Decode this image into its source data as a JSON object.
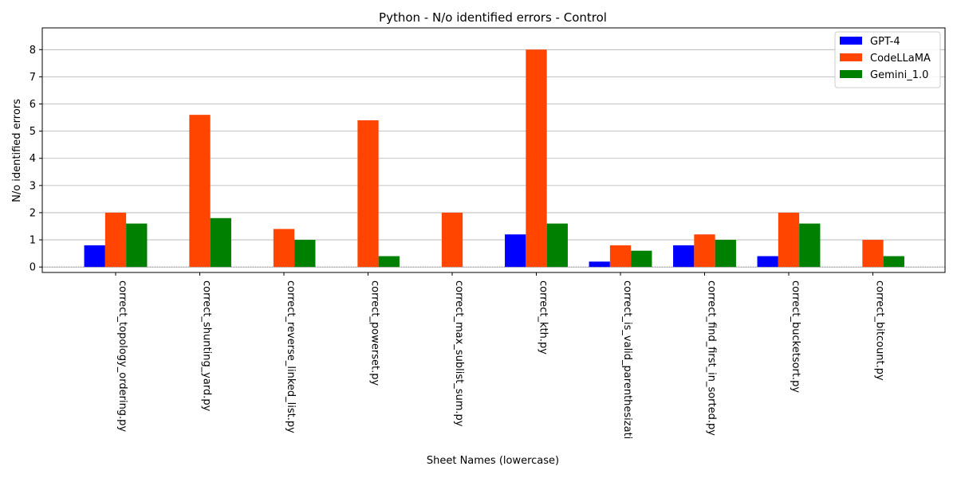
{
  "chart_data": {
    "type": "bar",
    "title": "Python - N/o identified errors - Control",
    "xlabel": "Sheet Names (lowercase)",
    "ylabel": "N/o identified errors",
    "ylim": [
      -0.2,
      8.8
    ],
    "yticks": [
      0,
      1,
      2,
      3,
      4,
      5,
      6,
      7,
      8
    ],
    "grid": "horizontal",
    "legend_position": "top-right",
    "categories": [
      "correct_topology_ordering.py",
      "correct_shunting_yard.py",
      "correct_reverse_linked_list.py",
      "correct_powerset.py",
      "correct_max_sublist_sum.py",
      "correct_kth.py",
      "correct_is_valid_parenthesizati",
      "correct_find_first_in_sorted.py",
      "correct_bucketsort.py",
      "correct_bitcount.py"
    ],
    "series": [
      {
        "name": "GPT-4",
        "color": "#0000ff",
        "values": [
          0.8,
          0.0,
          0.0,
          0.0,
          0.0,
          1.2,
          0.2,
          0.8,
          0.4,
          0.0
        ]
      },
      {
        "name": "CodeLLaMA",
        "color": "#ff4500",
        "values": [
          2.0,
          5.6,
          1.4,
          5.4,
          2.0,
          8.0,
          0.8,
          1.2,
          2.0,
          1.0
        ]
      },
      {
        "name": "Gemini_1.0",
        "color": "#008000",
        "values": [
          1.6,
          1.8,
          1.0,
          0.4,
          0.0,
          1.6,
          0.6,
          1.0,
          1.6,
          0.4
        ]
      }
    ]
  }
}
